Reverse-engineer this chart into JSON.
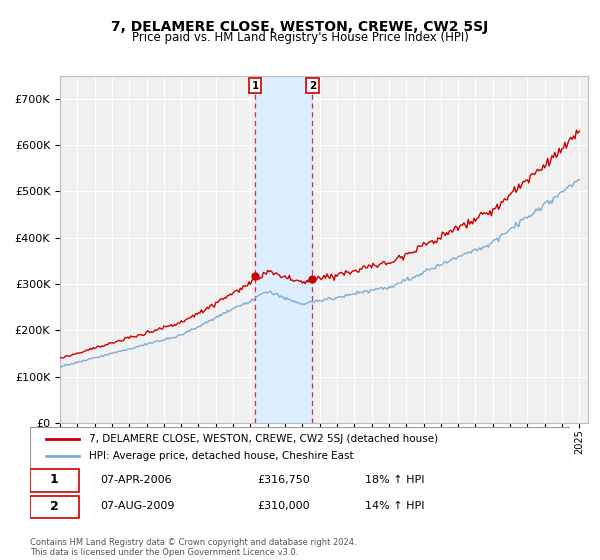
{
  "title": "7, DELAMERE CLOSE, WESTON, CREWE, CW2 5SJ",
  "subtitle": "Price paid vs. HM Land Registry's House Price Index (HPI)",
  "ylim": [
    0,
    750000
  ],
  "yticks": [
    0,
    100000,
    200000,
    300000,
    400000,
    500000,
    600000,
    700000
  ],
  "ytick_labels": [
    "£0",
    "£100K",
    "£200K",
    "£300K",
    "£400K",
    "£500K",
    "£600K",
    "£700K"
  ],
  "price_color": "#cc0000",
  "hpi_color": "#7bafd4",
  "highlight_color": "#ddeeff",
  "vline_color": "#cc0000",
  "t1": 2006.27,
  "t2": 2009.58,
  "p1": 316750,
  "p2": 310000,
  "transaction1": {
    "date_label": "07-APR-2006",
    "price": 316750,
    "hpi_pct": "18%",
    "label": "1"
  },
  "transaction2": {
    "date_label": "07-AUG-2009",
    "price": 310000,
    "hpi_pct": "14%",
    "label": "2"
  },
  "legend_label_price": "7, DELAMERE CLOSE, WESTON, CREWE, CW2 5SJ (detached house)",
  "legend_label_hpi": "HPI: Average price, detached house, Cheshire East",
  "footer": "Contains HM Land Registry data © Crown copyright and database right 2024.\nThis data is licensed under the Open Government Licence v3.0.",
  "background_color": "#ffffff",
  "plot_bg_color": "#f0f0f0",
  "grid_color": "#ffffff",
  "xlim_start": 1995,
  "xlim_end": 2025.5
}
